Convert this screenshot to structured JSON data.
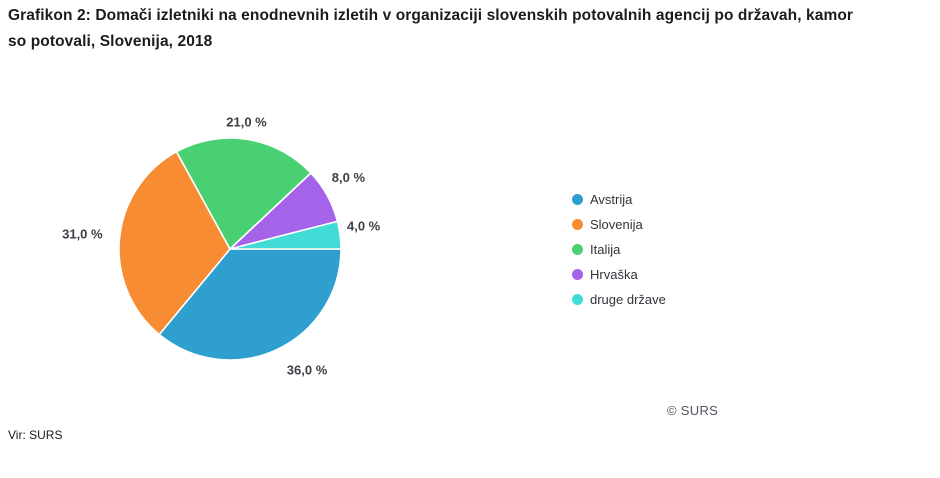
{
  "header": {
    "title_line1": "Grafikon 2: Domači izletniki na enodnevnih izletih v organizaciji slovenskih potovalnih agencij po državah, kamor",
    "title_line2": "so potovali, Slovenija, 2018"
  },
  "footer": {
    "source": "Vir: SURS",
    "copyright": "© SURS"
  },
  "chart_data": {
    "type": "pie",
    "title": "Grafikon 2: Domači izletniki na enodnevnih izletih v organizaciji slovenskih potovalnih agencij po državah, kamor so potovali, Slovenija, 2018",
    "unit": "%",
    "start_angle_deg": 0,
    "direction": "clockwise",
    "legend_position": "right",
    "grid": false,
    "slices": [
      {
        "label": "Avstrija",
        "value": 36.0,
        "display": "36,0 %",
        "color": "#2f9fd0"
      },
      {
        "label": "Slovenija",
        "value": 31.0,
        "display": "31,0 %",
        "color": "#f78c33"
      },
      {
        "label": "Italija",
        "value": 21.0,
        "display": "21,0 %",
        "color": "#49d072"
      },
      {
        "label": "Hrvaška",
        "value": 8.0,
        "display": "8,0 %",
        "color": "#a563ea"
      },
      {
        "label": "druge države",
        "value": 4.0,
        "display": "4,0 %",
        "color": "#41dcd7"
      }
    ]
  }
}
